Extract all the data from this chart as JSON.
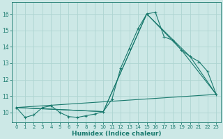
{
  "xlabel": "Humidex (Indice chaleur)",
  "bg_color": "#cce8e6",
  "line_color": "#1a7a6e",
  "grid_color": "#aed4d1",
  "xlim": [
    -0.5,
    23.5
  ],
  "ylim": [
    9.4,
    16.7
  ],
  "yticks": [
    10,
    11,
    12,
    13,
    14,
    15,
    16
  ],
  "xticks": [
    0,
    1,
    2,
    3,
    4,
    5,
    6,
    7,
    8,
    9,
    10,
    11,
    12,
    13,
    14,
    15,
    16,
    17,
    18,
    19,
    20,
    21,
    22,
    23
  ],
  "series_main_x": [
    0,
    1,
    2,
    3,
    4,
    5,
    6,
    7,
    8,
    9,
    10,
    11,
    12,
    13,
    14,
    15,
    16,
    17,
    18,
    19,
    20,
    21,
    22,
    23
  ],
  "series_main_y": [
    10.3,
    9.7,
    9.85,
    10.3,
    10.4,
    10.0,
    9.75,
    9.7,
    9.8,
    9.9,
    10.05,
    10.8,
    12.7,
    13.9,
    15.1,
    16.0,
    16.1,
    14.6,
    14.4,
    13.8,
    13.4,
    13.1,
    12.5,
    11.1
  ],
  "line2_x": [
    0,
    10,
    15,
    19,
    23
  ],
  "line2_y": [
    10.3,
    10.05,
    16.0,
    13.8,
    11.1
  ],
  "line3_x": [
    0,
    10,
    15,
    20,
    23
  ],
  "line3_y": [
    10.3,
    10.05,
    16.0,
    13.4,
    11.1
  ],
  "line4_x": [
    0,
    23
  ],
  "line4_y": [
    10.3,
    11.1
  ]
}
